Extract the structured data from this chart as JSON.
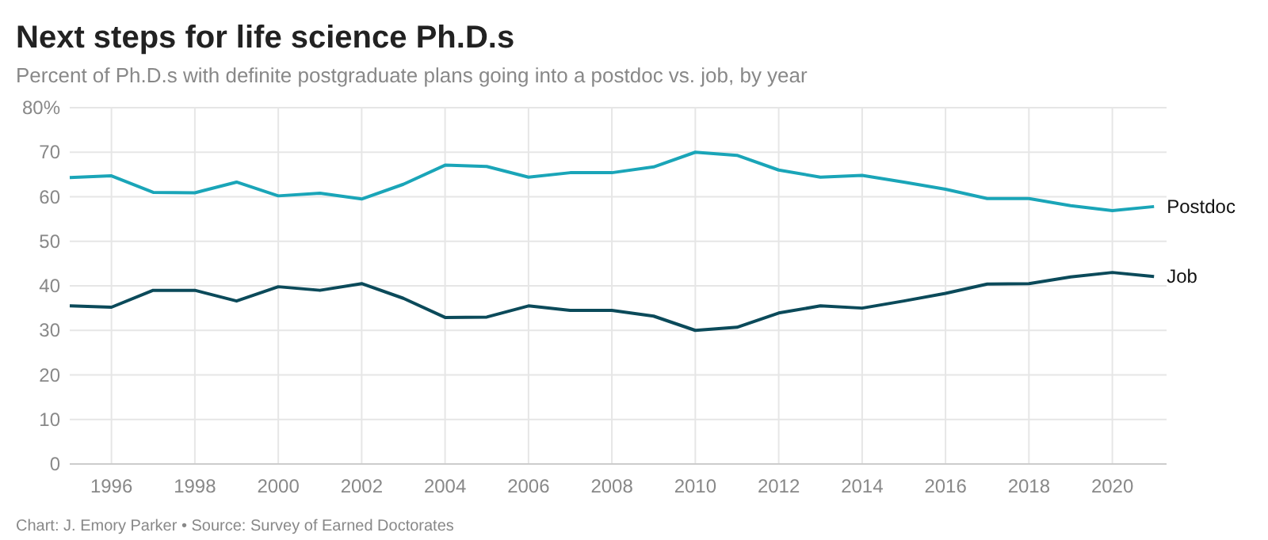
{
  "chart_data": {
    "type": "line",
    "title": "Next steps for life science Ph.D.s",
    "subtitle": "Percent of Ph.D.s with definite postgraduate plans going into a postdoc vs. job, by year",
    "annotations": [
      "Chart: J. Emory Parker • Source: Survey of Earned Doctorates"
    ],
    "x": [
      1995,
      1996,
      1997,
      1998,
      1999,
      2000,
      2001,
      2002,
      2003,
      2004,
      2005,
      2006,
      2007,
      2008,
      2009,
      2010,
      2011,
      2012,
      2013,
      2014,
      2015,
      2016,
      2017,
      2018,
      2019,
      2020,
      2021
    ],
    "series": [
      {
        "name": "Postdoc",
        "color": "#1aa5b8",
        "values": [
          64.3,
          64.7,
          61,
          60.9,
          63.3,
          60.2,
          60.8,
          59.5,
          62.8,
          67.1,
          66.8,
          64.4,
          65.4,
          65.4,
          66.7,
          70,
          69.3,
          66,
          64.4,
          64.8,
          63.3,
          61.7,
          59.6,
          59.6,
          58,
          56.9,
          57.8
        ]
      },
      {
        "name": "Job",
        "color": "#0b4a5a",
        "values": [
          35.5,
          35.2,
          39,
          39,
          36.6,
          39.8,
          39,
          40.5,
          37.2,
          32.9,
          33,
          35.5,
          34.5,
          34.5,
          33.2,
          30,
          30.7,
          33.9,
          35.5,
          35,
          36.6,
          38.3,
          40.4,
          40.5,
          42,
          43,
          42.1
        ]
      }
    ],
    "xlim": [
      1995,
      2021.3
    ],
    "xticks": [
      1996,
      1998,
      2000,
      2002,
      2004,
      2006,
      2008,
      2010,
      2012,
      2014,
      2016,
      2018,
      2020
    ],
    "ylim": [
      0,
      80
    ],
    "yticks": [
      0,
      10,
      20,
      30,
      40,
      50,
      60,
      70,
      {
        "value": 80,
        "label": "80%"
      }
    ],
    "grid": true,
    "legend": "right",
    "line_style": "solid",
    "marker": "none"
  }
}
